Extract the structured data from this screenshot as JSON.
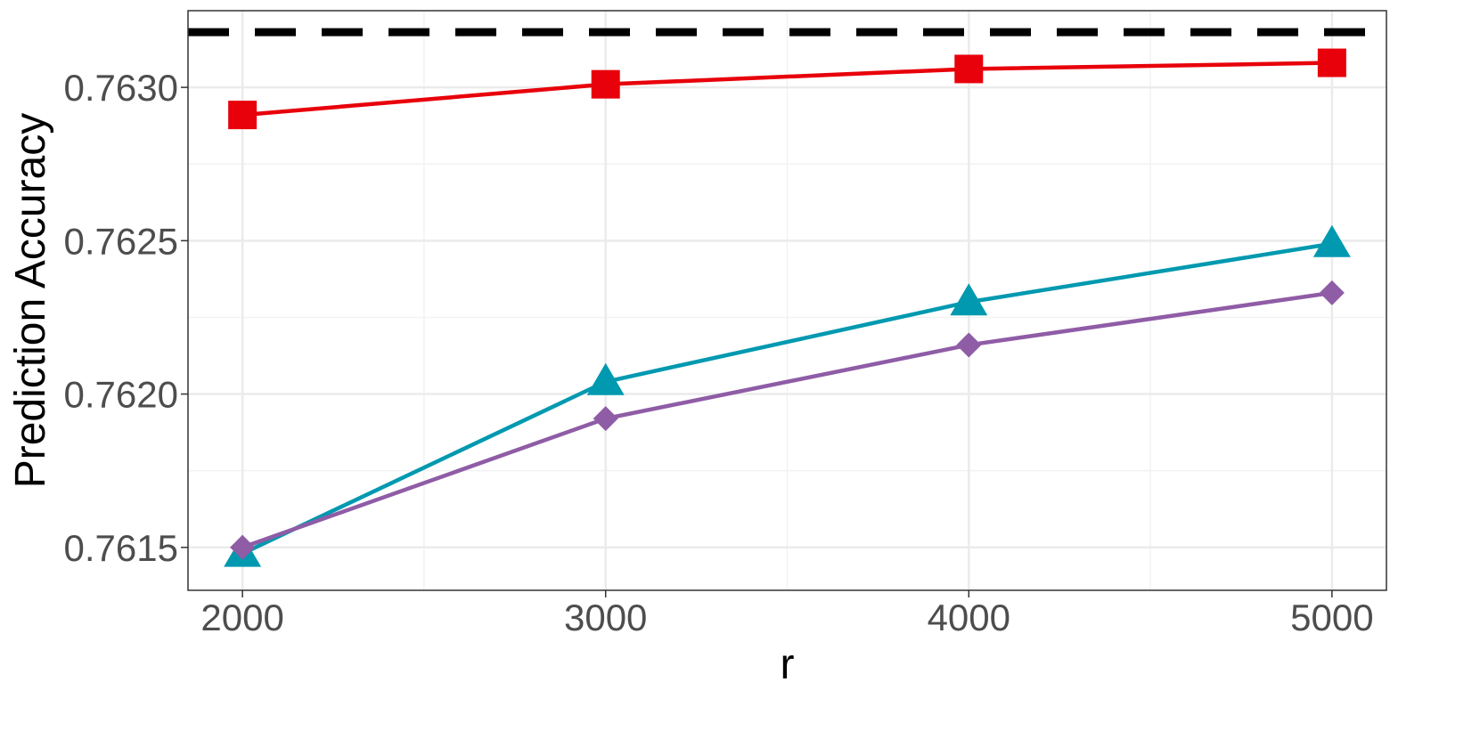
{
  "chart_data": {
    "type": "line",
    "xlabel": "r",
    "ylabel": "Prediction Accuracy",
    "x": [
      2000,
      3000,
      4000,
      5000
    ],
    "x_ticks": [
      2000,
      3000,
      4000,
      5000
    ],
    "x_tick_labels": [
      "2000",
      "3000",
      "4000",
      "5000"
    ],
    "xlim": [
      1850,
      5150
    ],
    "y_ticks": [
      0.7615,
      0.762,
      0.7625,
      0.763
    ],
    "y_tick_labels": [
      "0.7615",
      "0.7620",
      "0.7625",
      "0.7630"
    ],
    "ylim": [
      0.76136,
      0.76325
    ],
    "grid": true,
    "legend": "none",
    "reference_line": {
      "y": 0.76318,
      "style": "dashed",
      "color": "#000000"
    },
    "series": [
      {
        "values": [
          0.76291,
          0.76301,
          0.76306,
          0.76308
        ],
        "color": "#E8000B",
        "marker": "square"
      },
      {
        "values": [
          0.76148,
          0.76204,
          0.7623,
          0.76249
        ],
        "color": "#0099B0",
        "marker": "triangle"
      },
      {
        "values": [
          0.7615,
          0.76192,
          0.76216,
          0.76233
        ],
        "color": "#8F5CA6",
        "marker": "diamond"
      }
    ]
  }
}
